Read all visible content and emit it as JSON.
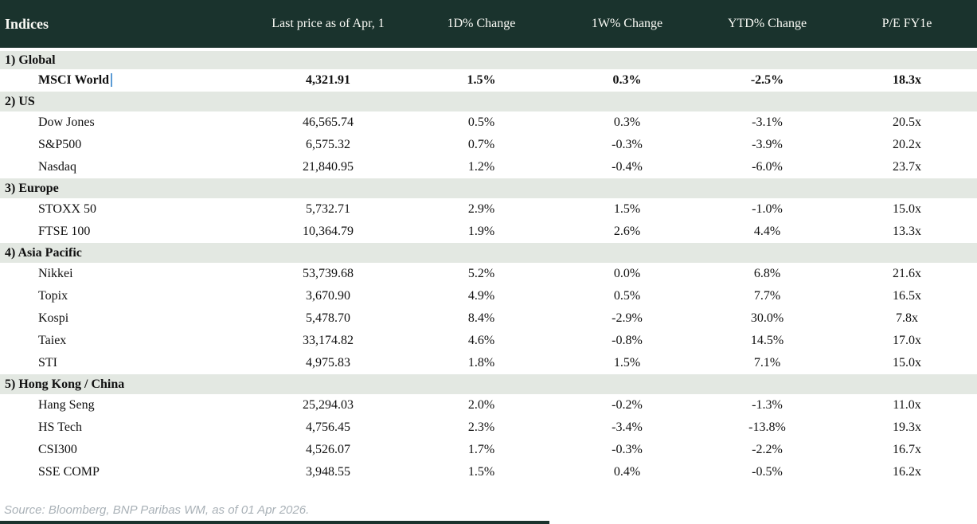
{
  "header": {
    "title": "Indices",
    "columns": [
      "Last price as of Apr, 1",
      "1D% Change",
      "1W% Change",
      "YTD% Change",
      "P/E FY1e"
    ]
  },
  "colors": {
    "header_bg": "#1a332d",
    "section_bg": "#e3e8e2",
    "positive": "#008313",
    "negative": "#bf1126",
    "cursor_blue": "#5b9bd5",
    "source_gray": "#a9b1b7"
  },
  "sections": [
    {
      "label": "1) Global",
      "rows": [
        {
          "name": "MSCI World",
          "price": "4,321.91",
          "chg_1d": {
            "text": "1.5%",
            "tone": "pos"
          },
          "chg_1w": {
            "text": "0.3%",
            "tone": "pos"
          },
          "chg_ytd": {
            "text": "-2.5%",
            "tone": "neg"
          },
          "pe": "18.3x",
          "bold": true,
          "has_cursor": true
        }
      ]
    },
    {
      "label": "2) US",
      "rows": [
        {
          "name": "Dow Jones",
          "price": "46,565.74",
          "chg_1d": {
            "text": "0.5%",
            "tone": "pos"
          },
          "chg_1w": {
            "text": "0.3%",
            "tone": "pos"
          },
          "chg_ytd": {
            "text": "-3.1%",
            "tone": "neg"
          },
          "pe": "20.5x"
        },
        {
          "name": "S&P500",
          "price": "6,575.32",
          "chg_1d": {
            "text": "0.7%",
            "tone": "pos"
          },
          "chg_1w": {
            "text": "-0.3%",
            "tone": "neg"
          },
          "chg_ytd": {
            "text": "-3.9%",
            "tone": "neg"
          },
          "pe": "20.2x"
        },
        {
          "name": "Nasdaq",
          "price": "21,840.95",
          "chg_1d": {
            "text": "1.2%",
            "tone": "pos"
          },
          "chg_1w": {
            "text": "-0.4%",
            "tone": "neg"
          },
          "chg_ytd": {
            "text": "-6.0%",
            "tone": "neg"
          },
          "pe": "23.7x"
        }
      ]
    },
    {
      "label": "3) Europe",
      "rows": [
        {
          "name": "STOXX 50",
          "price": "5,732.71",
          "chg_1d": {
            "text": "2.9%",
            "tone": "pos"
          },
          "chg_1w": {
            "text": "1.5%",
            "tone": "pos"
          },
          "chg_ytd": {
            "text": "-1.0%",
            "tone": "neg"
          },
          "pe": "15.0x"
        },
        {
          "name": "FTSE 100",
          "price": "10,364.79",
          "chg_1d": {
            "text": "1.9%",
            "tone": "pos"
          },
          "chg_1w": {
            "text": "2.6%",
            "tone": "pos"
          },
          "chg_ytd": {
            "text": "4.4%",
            "tone": "pos"
          },
          "pe": "13.3x"
        }
      ]
    },
    {
      "label": "4) Asia Pacific",
      "rows": [
        {
          "name": "Nikkei",
          "price": "53,739.68",
          "chg_1d": {
            "text": "5.2%",
            "tone": "pos"
          },
          "chg_1w": {
            "text": "0.0%",
            "tone": "neg"
          },
          "chg_ytd": {
            "text": "6.8%",
            "tone": "pos"
          },
          "pe": "21.6x"
        },
        {
          "name": "Topix",
          "price": "3,670.90",
          "chg_1d": {
            "text": "4.9%",
            "tone": "pos"
          },
          "chg_1w": {
            "text": "0.5%",
            "tone": "pos"
          },
          "chg_ytd": {
            "text": "7.7%",
            "tone": "pos"
          },
          "pe": "16.5x"
        },
        {
          "name": "Kospi",
          "price": "5,478.70",
          "chg_1d": {
            "text": "8.4%",
            "tone": "pos"
          },
          "chg_1w": {
            "text": "-2.9%",
            "tone": "neg"
          },
          "chg_ytd": {
            "text": "30.0%",
            "tone": "pos"
          },
          "pe": "7.8x"
        },
        {
          "name": "Taiex",
          "price": "33,174.82",
          "chg_1d": {
            "text": "4.6%",
            "tone": "pos"
          },
          "chg_1w": {
            "text": "-0.8%",
            "tone": "neg"
          },
          "chg_ytd": {
            "text": "14.5%",
            "tone": "pos"
          },
          "pe": "17.0x"
        },
        {
          "name": "STI",
          "price": "4,975.83",
          "chg_1d": {
            "text": "1.8%",
            "tone": "pos"
          },
          "chg_1w": {
            "text": "1.5%",
            "tone": "pos"
          },
          "chg_ytd": {
            "text": "7.1%",
            "tone": "pos"
          },
          "pe": "15.0x"
        }
      ]
    },
    {
      "label": "5) Hong Kong / China",
      "rows": [
        {
          "name": "Hang Seng",
          "price": "25,294.03",
          "chg_1d": {
            "text": "2.0%",
            "tone": "pos"
          },
          "chg_1w": {
            "text": "-0.2%",
            "tone": "neg"
          },
          "chg_ytd": {
            "text": "-1.3%",
            "tone": "neg"
          },
          "pe": "11.0x"
        },
        {
          "name": "HS Tech",
          "price": "4,756.45",
          "chg_1d": {
            "text": "2.3%",
            "tone": "pos"
          },
          "chg_1w": {
            "text": "-3.4%",
            "tone": "neg"
          },
          "chg_ytd": {
            "text": "-13.8%",
            "tone": "neg"
          },
          "pe": "19.3x"
        },
        {
          "name": "CSI300",
          "price": "4,526.07",
          "chg_1d": {
            "text": "1.7%",
            "tone": "pos"
          },
          "chg_1w": {
            "text": "-0.3%",
            "tone": "neg"
          },
          "chg_ytd": {
            "text": "-2.2%",
            "tone": "neg"
          },
          "pe": "16.7x"
        },
        {
          "name": "SSE COMP",
          "price": "3,948.55",
          "chg_1d": {
            "text": "1.5%",
            "tone": "pos"
          },
          "chg_1w": {
            "text": "0.4%",
            "tone": "pos"
          },
          "chg_ytd": {
            "text": "-0.5%",
            "tone": "neg"
          },
          "pe": "16.2x"
        }
      ]
    }
  ],
  "footer": {
    "source": "Source: Bloomberg, BNP Paribas WM, as of 01 Apr 2026."
  },
  "chart_data": {
    "type": "table",
    "title": "Indices",
    "columns": [
      "Indices",
      "Last price as of Apr, 1",
      "1D% Change",
      "1W% Change",
      "YTD% Change",
      "P/E FY1e"
    ],
    "rows": [
      [
        "1) Global",
        "",
        "",
        "",
        "",
        ""
      ],
      [
        "MSCI World",
        4321.91,
        1.5,
        0.3,
        -2.5,
        18.3
      ],
      [
        "2) US",
        "",
        "",
        "",
        "",
        ""
      ],
      [
        "Dow Jones",
        46565.74,
        0.5,
        0.3,
        -3.1,
        20.5
      ],
      [
        "S&P500",
        6575.32,
        0.7,
        -0.3,
        -3.9,
        20.2
      ],
      [
        "Nasdaq",
        21840.95,
        1.2,
        -0.4,
        -6.0,
        23.7
      ],
      [
        "3) Europe",
        "",
        "",
        "",
        "",
        ""
      ],
      [
        "STOXX 50",
        5732.71,
        2.9,
        1.5,
        -1.0,
        15.0
      ],
      [
        "FTSE 100",
        10364.79,
        1.9,
        2.6,
        4.4,
        13.3
      ],
      [
        "4) Asia Pacific",
        "",
        "",
        "",
        "",
        ""
      ],
      [
        "Nikkei",
        53739.68,
        5.2,
        0.0,
        6.8,
        21.6
      ],
      [
        "Topix",
        3670.9,
        4.9,
        0.5,
        7.7,
        16.5
      ],
      [
        "Kospi",
        5478.7,
        8.4,
        -2.9,
        30.0,
        7.8
      ],
      [
        "Taiex",
        33174.82,
        4.6,
        -0.8,
        14.5,
        17.0
      ],
      [
        "STI",
        4975.83,
        1.8,
        1.5,
        7.1,
        15.0
      ],
      [
        "5) Hong Kong / China",
        "",
        "",
        "",
        "",
        ""
      ],
      [
        "Hang Seng",
        25294.03,
        2.0,
        -0.2,
        -1.3,
        11.0
      ],
      [
        "HS Tech",
        4756.45,
        2.3,
        -3.4,
        -13.8,
        19.3
      ],
      [
        "CSI300",
        4526.07,
        1.7,
        -0.3,
        -2.2,
        16.7
      ],
      [
        "SSE COMP",
        3948.55,
        1.5,
        0.4,
        -0.5,
        16.2
      ]
    ]
  }
}
